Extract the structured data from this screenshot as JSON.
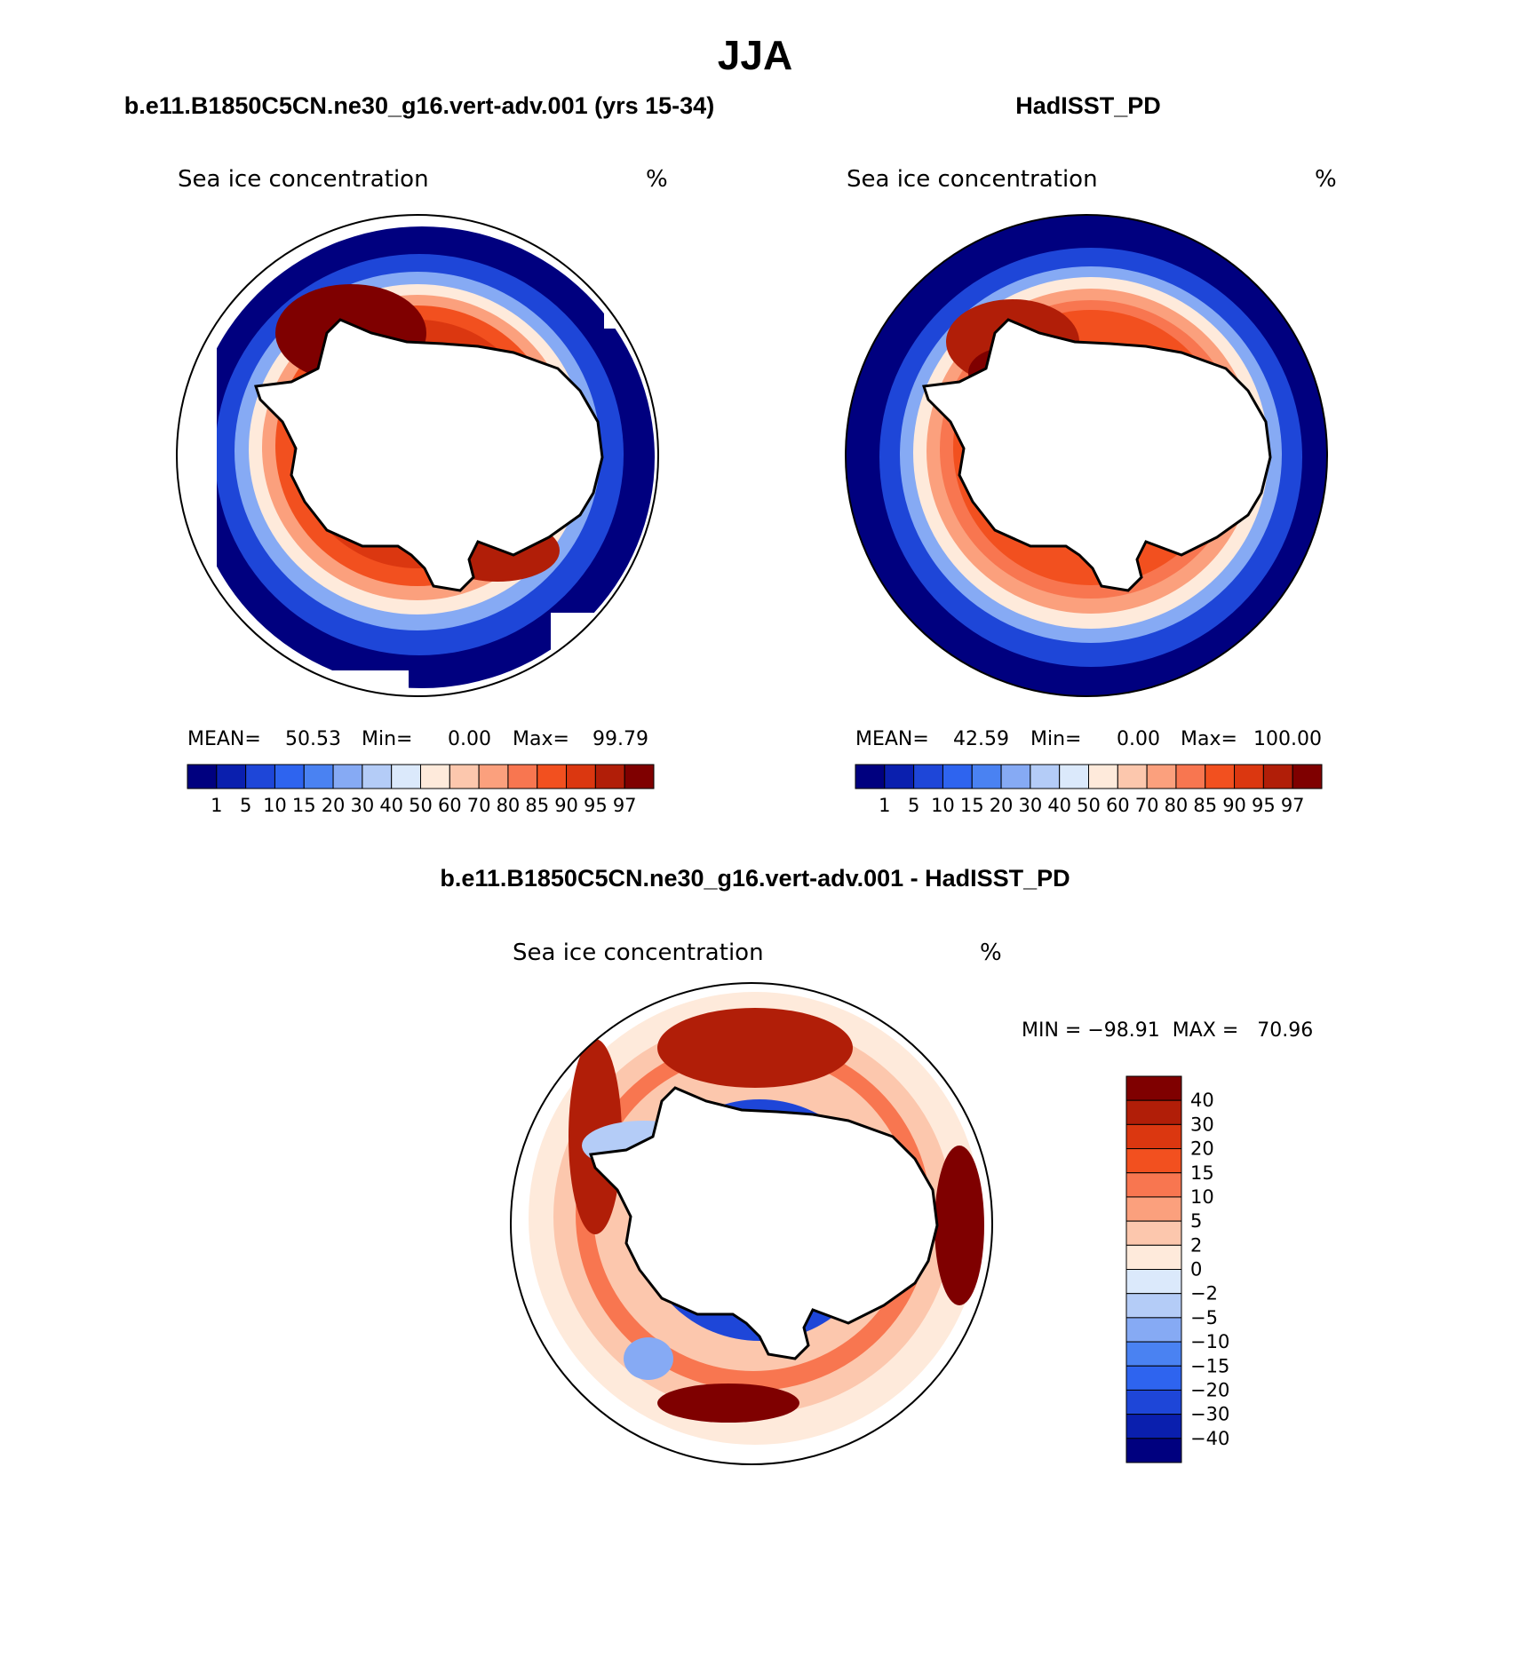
{
  "main_title": "JJA",
  "panels": [
    {
      "id": "model",
      "header": "b.e11.B1850C5CN.ne30_g16.vert-adv.001 (yrs 15-34)",
      "variable": "Sea ice concentration",
      "units": "%",
      "stats": {
        "mean_label": "MEAN=",
        "mean": "50.53",
        "min_label": "Min=",
        "min": "0.00",
        "max_label": "Max=",
        "max": "99.79"
      }
    },
    {
      "id": "obs",
      "header": "HadISST_PD",
      "variable": "Sea ice concentration",
      "units": "%",
      "stats": {
        "mean_label": "MEAN=",
        "mean": "42.59",
        "min_label": "Min=",
        "min": "0.00",
        "max_label": "Max=",
        "max": "100.00"
      }
    }
  ],
  "abs_colorbar": {
    "labels": [
      "1",
      "5",
      "10",
      "15",
      "20",
      "30",
      "40",
      "50",
      "60",
      "70",
      "80",
      "85",
      "90",
      "95",
      "97"
    ],
    "colors": [
      "#00007f",
      "#0a1fae",
      "#1e46d8",
      "#2e64ef",
      "#4a82f2",
      "#86aaf4",
      "#b4ccf7",
      "#dbe9fb",
      "#feeadb",
      "#fcc7ad",
      "#fba07d",
      "#f87650",
      "#f2501f",
      "#db3710",
      "#b11e08",
      "#7f0000"
    ]
  },
  "diff_panel": {
    "header": "b.e11.B1850C5CN.ne30_g16.vert-adv.001 - HadISST_PD",
    "variable": "Sea ice concentration",
    "units": "%",
    "minmax": "MIN = −98.91  MAX =   70.96"
  },
  "diff_colorbar": {
    "labels": [
      "40",
      "30",
      "20",
      "15",
      "10",
      "5",
      "2",
      "0",
      "−2",
      "−5",
      "−10",
      "−15",
      "−20",
      "−30",
      "−40"
    ],
    "colors": [
      "#7f0000",
      "#b11e08",
      "#db3710",
      "#f2501f",
      "#f87650",
      "#fba07d",
      "#fcc7ad",
      "#feeadb",
      "#dbe9fb",
      "#b4ccf7",
      "#86aaf4",
      "#4a82f2",
      "#2e64ef",
      "#1e46d8",
      "#0a1fae",
      "#00007f"
    ]
  }
}
